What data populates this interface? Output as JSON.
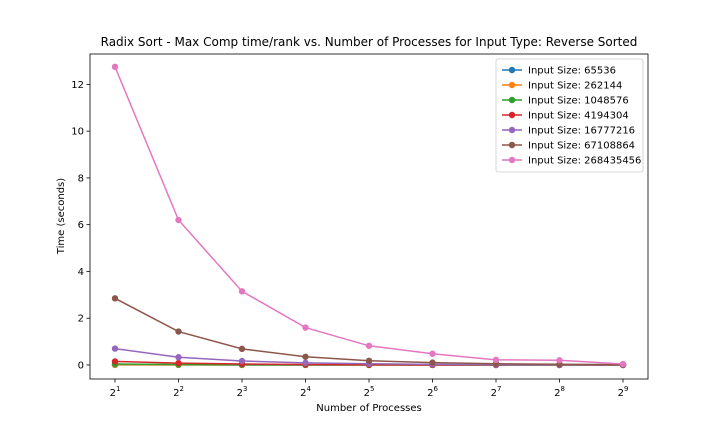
{
  "chart_data": {
    "type": "line",
    "title": "Radix Sort - Max Comp time/rank vs. Number of Processes for Input Type: Reverse Sorted",
    "xlabel": "Number of Processes",
    "ylabel": "Time (seconds)",
    "x": [
      2,
      4,
      8,
      16,
      32,
      64,
      128,
      256,
      512
    ],
    "x_tick_labels": [
      {
        "base": "2",
        "exp": "1"
      },
      {
        "base": "2",
        "exp": "2"
      },
      {
        "base": "2",
        "exp": "3"
      },
      {
        "base": "2",
        "exp": "4"
      },
      {
        "base": "2",
        "exp": "5"
      },
      {
        "base": "2",
        "exp": "6"
      },
      {
        "base": "2",
        "exp": "7"
      },
      {
        "base": "2",
        "exp": "8"
      },
      {
        "base": "2",
        "exp": "9"
      }
    ],
    "x_scale": "log2",
    "yticks": [
      0,
      2,
      4,
      6,
      8,
      10,
      12
    ],
    "ylim": [
      -0.6,
      13.3
    ],
    "grid": false,
    "legend_position": "top-right",
    "series": [
      {
        "name": "Input Size: 65536",
        "color": "#1f77b4",
        "values": [
          0.003,
          0.002,
          0.001,
          0.001,
          0.001,
          0.001,
          0.001,
          0.001,
          0.001
        ]
      },
      {
        "name": "Input Size: 262144",
        "color": "#ff7f0e",
        "values": [
          0.011,
          0.006,
          0.003,
          0.002,
          0.001,
          0.001,
          0.001,
          0.001,
          0.001
        ]
      },
      {
        "name": "Input Size: 1048576",
        "color": "#2ca02c",
        "values": [
          0.04,
          0.02,
          0.011,
          0.006,
          0.003,
          0.002,
          0.001,
          0.001,
          0.001
        ]
      },
      {
        "name": "Input Size: 4194304",
        "color": "#d62728",
        "values": [
          0.15,
          0.08,
          0.04,
          0.02,
          0.011,
          0.006,
          0.003,
          0.002,
          0.001
        ]
      },
      {
        "name": "Input Size: 16777216",
        "color": "#9467bd",
        "values": [
          0.7,
          0.33,
          0.17,
          0.09,
          0.05,
          0.025,
          0.013,
          0.007,
          0.004
        ]
      },
      {
        "name": "Input Size: 67108864",
        "color": "#8c564b",
        "values": [
          2.85,
          1.43,
          0.69,
          0.35,
          0.18,
          0.1,
          0.05,
          0.03,
          0.015
        ]
      },
      {
        "name": "Input Size: 268435456",
        "color": "#e377c2",
        "values": [
          12.75,
          6.2,
          3.15,
          1.6,
          0.82,
          0.48,
          0.22,
          0.2,
          0.04
        ]
      }
    ]
  }
}
